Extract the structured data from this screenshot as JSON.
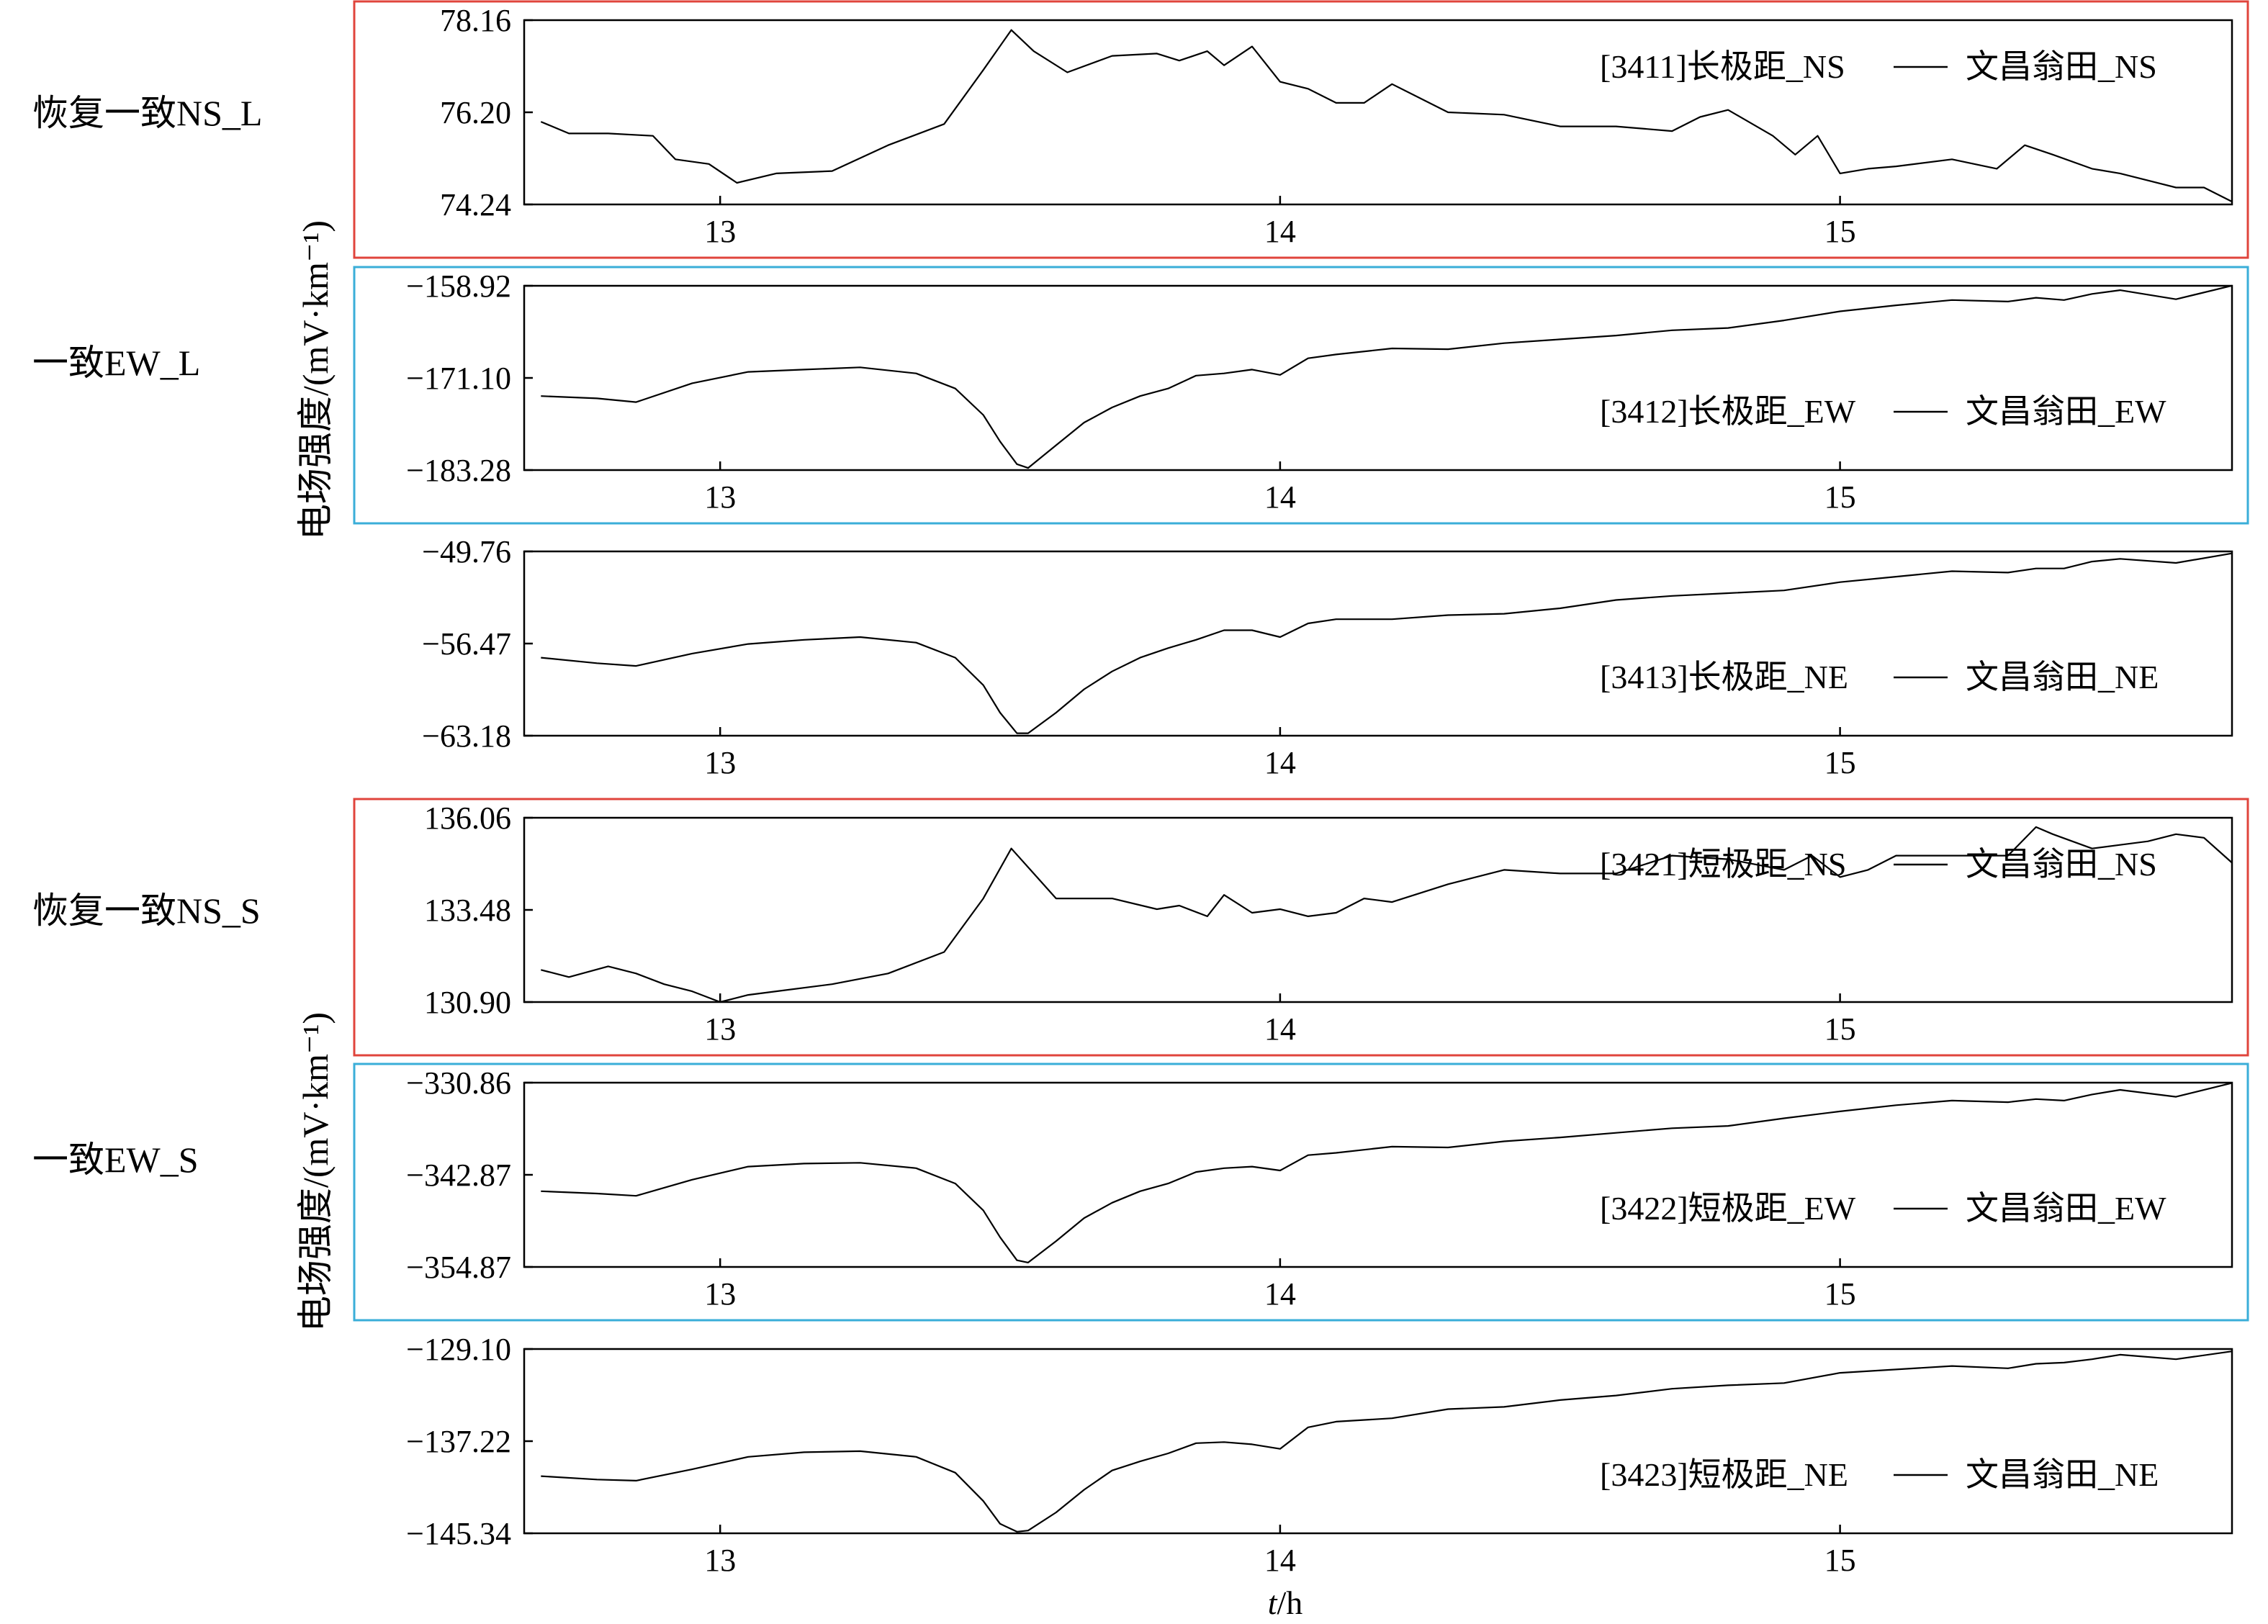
{
  "figure": {
    "x_axis_label_italic": "t",
    "x_axis_label_rest": "/h",
    "y_axis_label_group_top": "电场强度/(mV·km⁻¹)",
    "y_axis_label_group_bottom": "电场强度/(mV·km⁻¹)",
    "box_colors": {
      "recover": "#e0443c",
      "consistent": "#3aaed8"
    },
    "line_color": "#000000"
  },
  "side_labels": [
    {
      "text": "恢复一致NS_L",
      "panel": 0
    },
    {
      "text": "一致EW_L",
      "panel": 1
    },
    {
      "text": "恢复一致NS_S",
      "panel": 3
    },
    {
      "text": "一致EW_S",
      "panel": 4
    }
  ],
  "chart_data": [
    {
      "type": "line",
      "box": "recover",
      "legend_name": "[3411]长极距_NS",
      "legend_sep": "—",
      "legend_station": "文昌翁田_NS",
      "ylim": [
        74.24,
        78.16
      ],
      "yticks": [
        "78.16",
        "76.20",
        "74.24"
      ],
      "xlim": [
        12.65,
        15.7
      ],
      "xticks": [
        "13",
        "14",
        "15"
      ],
      "x": [
        12.68,
        12.73,
        12.8,
        12.88,
        12.92,
        12.98,
        13.03,
        13.1,
        13.2,
        13.3,
        13.4,
        13.47,
        13.52,
        13.56,
        13.62,
        13.7,
        13.78,
        13.82,
        13.87,
        13.9,
        13.95,
        14.0,
        14.05,
        14.1,
        14.15,
        14.2,
        14.3,
        14.4,
        14.5,
        14.6,
        14.7,
        14.75,
        14.8,
        14.88,
        14.92,
        14.96,
        15.0,
        15.05,
        15.1,
        15.2,
        15.28,
        15.33,
        15.38,
        15.45,
        15.5,
        15.55,
        15.6,
        15.65,
        15.7
      ],
      "y": [
        76.0,
        75.75,
        75.75,
        75.7,
        75.2,
        75.1,
        74.7,
        74.9,
        74.95,
        75.5,
        75.95,
        77.1,
        77.95,
        77.5,
        77.05,
        77.4,
        77.45,
        77.3,
        77.5,
        77.2,
        77.6,
        76.85,
        76.7,
        76.4,
        76.4,
        76.8,
        76.2,
        76.15,
        75.9,
        75.9,
        75.8,
        76.1,
        76.25,
        75.7,
        75.3,
        75.7,
        74.9,
        75.0,
        75.05,
        75.2,
        75.0,
        75.5,
        75.3,
        75.0,
        74.9,
        74.75,
        74.6,
        74.6,
        74.3
      ]
    },
    {
      "type": "line",
      "box": "consistent",
      "legend_name": "[3412]长极距_EW",
      "legend_sep": "—",
      "legend_station": "文昌翁田_EW",
      "ylim": [
        -183.28,
        -158.92
      ],
      "yticks": [
        "−158.92",
        "−171.10",
        "−183.28"
      ],
      "xlim": [
        12.65,
        15.7
      ],
      "xticks": [
        "13",
        "14",
        "15"
      ],
      "x": [
        12.68,
        12.78,
        12.85,
        12.95,
        13.05,
        13.15,
        13.25,
        13.35,
        13.42,
        13.47,
        13.5,
        13.53,
        13.55,
        13.6,
        13.65,
        13.7,
        13.75,
        13.8,
        13.85,
        13.9,
        13.95,
        14.0,
        14.05,
        14.1,
        14.2,
        14.3,
        14.4,
        14.5,
        14.6,
        14.7,
        14.8,
        14.9,
        15.0,
        15.1,
        15.2,
        15.3,
        15.35,
        15.4,
        15.45,
        15.5,
        15.6,
        15.7
      ],
      "y": [
        -173.5,
        -173.8,
        -174.3,
        -171.8,
        -170.3,
        -170.0,
        -169.7,
        -170.5,
        -172.5,
        -176.0,
        -179.5,
        -182.5,
        -183.0,
        -180.0,
        -177.0,
        -175.0,
        -173.5,
        -172.5,
        -170.8,
        -170.5,
        -170.0,
        -170.7,
        -168.5,
        -168.0,
        -167.2,
        -167.3,
        -166.5,
        -166.0,
        -165.5,
        -164.8,
        -164.5,
        -163.5,
        -162.3,
        -161.5,
        -160.8,
        -161.0,
        -160.5,
        -160.8,
        -160.0,
        -159.5,
        -160.7,
        -158.9
      ]
    },
    {
      "type": "line",
      "box": "none",
      "legend_name": "[3413]长极距_NE",
      "legend_sep": "—",
      "legend_station": "文昌翁田_NE",
      "ylim": [
        -63.18,
        -49.76
      ],
      "yticks": [
        "−49.76",
        "−56.47",
        "−63.18"
      ],
      "xlim": [
        12.65,
        15.7
      ],
      "xticks": [
        "13",
        "14",
        "15"
      ],
      "x": [
        12.68,
        12.78,
        12.85,
        12.95,
        13.05,
        13.15,
        13.25,
        13.35,
        13.42,
        13.47,
        13.5,
        13.53,
        13.55,
        13.6,
        13.65,
        13.7,
        13.75,
        13.8,
        13.85,
        13.9,
        13.95,
        14.0,
        14.05,
        14.1,
        14.2,
        14.3,
        14.4,
        14.5,
        14.6,
        14.7,
        14.8,
        14.9,
        15.0,
        15.1,
        15.2,
        15.3,
        15.35,
        15.4,
        15.45,
        15.5,
        15.6,
        15.7
      ],
      "y": [
        -57.5,
        -57.9,
        -58.1,
        -57.2,
        -56.5,
        -56.2,
        -56.0,
        -56.4,
        -57.5,
        -59.5,
        -61.5,
        -63.0,
        -63.0,
        -61.5,
        -59.8,
        -58.5,
        -57.5,
        -56.8,
        -56.2,
        -55.5,
        -55.5,
        -56.0,
        -55.0,
        -54.7,
        -54.7,
        -54.4,
        -54.3,
        -53.9,
        -53.3,
        -53.0,
        -52.8,
        -52.6,
        -52.0,
        -51.6,
        -51.2,
        -51.3,
        -51.0,
        -51.0,
        -50.5,
        -50.3,
        -50.6,
        -49.9
      ]
    },
    {
      "type": "line",
      "box": "recover",
      "legend_name": "[3421]短极距_NS",
      "legend_sep": "—",
      "legend_station": "文昌翁田_NS",
      "ylim": [
        130.9,
        136.06
      ],
      "yticks": [
        "136.06",
        "133.48",
        "130.90"
      ],
      "xlim": [
        12.65,
        15.7
      ],
      "xticks": [
        "13",
        "14",
        "15"
      ],
      "x": [
        12.68,
        12.73,
        12.8,
        12.85,
        12.9,
        12.95,
        13.0,
        13.05,
        13.1,
        13.2,
        13.3,
        13.4,
        13.47,
        13.52,
        13.56,
        13.6,
        13.7,
        13.78,
        13.82,
        13.87,
        13.9,
        13.95,
        14.0,
        14.05,
        14.1,
        14.15,
        14.2,
        14.3,
        14.4,
        14.5,
        14.6,
        14.7,
        14.8,
        14.9,
        14.95,
        15.0,
        15.05,
        15.1,
        15.2,
        15.3,
        15.35,
        15.38,
        15.45,
        15.5,
        15.55,
        15.6,
        15.65,
        15.7
      ],
      "y": [
        131.8,
        131.6,
        131.9,
        131.7,
        131.4,
        131.2,
        130.9,
        131.1,
        131.2,
        131.4,
        131.7,
        132.3,
        133.8,
        135.2,
        134.5,
        133.8,
        133.8,
        133.5,
        133.6,
        133.3,
        133.9,
        133.4,
        133.5,
        133.3,
        133.4,
        133.8,
        133.7,
        134.2,
        134.6,
        134.5,
        134.5,
        135.0,
        134.9,
        134.6,
        135.0,
        134.4,
        134.6,
        135.0,
        135.0,
        135.0,
        135.8,
        135.6,
        135.2,
        135.3,
        135.4,
        135.6,
        135.5,
        134.8
      ]
    },
    {
      "type": "line",
      "box": "consistent",
      "legend_name": "[3422]短极距_EW",
      "legend_sep": "—",
      "legend_station": "文昌翁田_EW",
      "ylim": [
        -354.87,
        -330.86
      ],
      "yticks": [
        "−330.86",
        "−342.87",
        "−354.87"
      ],
      "xlim": [
        12.65,
        15.7
      ],
      "xticks": [
        "13",
        "14",
        "15"
      ],
      "x": [
        12.68,
        12.78,
        12.85,
        12.95,
        13.05,
        13.15,
        13.25,
        13.35,
        13.42,
        13.47,
        13.5,
        13.53,
        13.55,
        13.6,
        13.65,
        13.7,
        13.75,
        13.8,
        13.85,
        13.9,
        13.95,
        14.0,
        14.05,
        14.1,
        14.2,
        14.3,
        14.4,
        14.5,
        14.6,
        14.7,
        14.8,
        14.9,
        15.0,
        15.1,
        15.2,
        15.3,
        15.35,
        15.4,
        15.45,
        15.5,
        15.6,
        15.7
      ],
      "y": [
        -345.0,
        -345.3,
        -345.6,
        -343.5,
        -341.8,
        -341.4,
        -341.3,
        -342.0,
        -344.0,
        -347.5,
        -351.0,
        -354.0,
        -354.3,
        -351.5,
        -348.5,
        -346.5,
        -345.0,
        -344.0,
        -342.5,
        -342.0,
        -341.8,
        -342.3,
        -340.3,
        -340.0,
        -339.2,
        -339.3,
        -338.5,
        -338.0,
        -337.4,
        -336.8,
        -336.5,
        -335.5,
        -334.6,
        -333.8,
        -333.2,
        -333.4,
        -333.0,
        -333.2,
        -332.4,
        -331.8,
        -332.7,
        -330.9
      ]
    },
    {
      "type": "line",
      "box": "none",
      "legend_name": "[3423]短极距_NE",
      "legend_sep": "—",
      "legend_station": "文昌翁田_NE",
      "ylim": [
        -145.34,
        -129.1
      ],
      "yticks": [
        "−129.10",
        "−137.22",
        "−145.34"
      ],
      "xlim": [
        12.65,
        15.7
      ],
      "xticks": [
        "13",
        "14",
        "15"
      ],
      "x": [
        12.68,
        12.78,
        12.85,
        12.95,
        13.05,
        13.15,
        13.25,
        13.35,
        13.42,
        13.47,
        13.5,
        13.53,
        13.55,
        13.6,
        13.65,
        13.7,
        13.75,
        13.8,
        13.85,
        13.9,
        13.95,
        14.0,
        14.05,
        14.1,
        14.2,
        14.3,
        14.4,
        14.5,
        14.6,
        14.7,
        14.8,
        14.9,
        15.0,
        15.1,
        15.2,
        15.3,
        15.35,
        15.4,
        15.45,
        15.5,
        15.6,
        15.7
      ],
      "y": [
        -140.3,
        -140.6,
        -140.7,
        -139.7,
        -138.6,
        -138.2,
        -138.1,
        -138.6,
        -140.0,
        -142.5,
        -144.5,
        -145.2,
        -145.1,
        -143.5,
        -141.5,
        -139.8,
        -139.0,
        -138.3,
        -137.4,
        -137.3,
        -137.5,
        -137.9,
        -136.0,
        -135.5,
        -135.2,
        -134.4,
        -134.2,
        -133.6,
        -133.2,
        -132.6,
        -132.3,
        -132.1,
        -131.2,
        -130.9,
        -130.6,
        -130.8,
        -130.4,
        -130.3,
        -130.0,
        -129.6,
        -130.0,
        -129.3
      ]
    }
  ]
}
